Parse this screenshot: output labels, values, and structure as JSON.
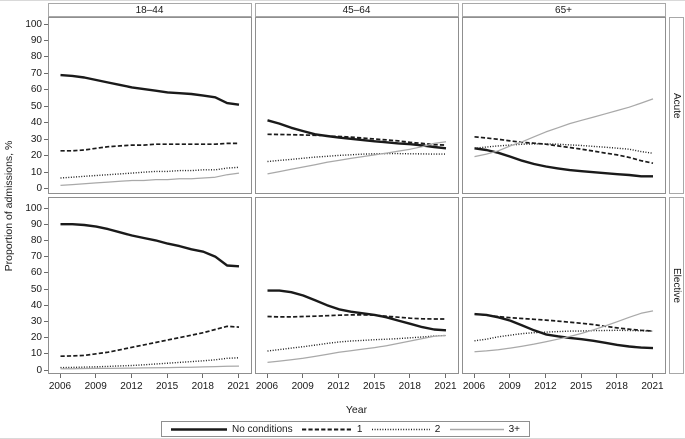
{
  "figure": {
    "ylabel": "Proportion of admissions, %",
    "xlabel": "Year",
    "col_headers": [
      "18–44",
      "45–64",
      "65+"
    ],
    "row_headers": [
      "Acute",
      "Elective"
    ],
    "y_ticks": [
      100,
      90,
      80,
      70,
      60,
      50,
      40,
      30,
      20,
      10,
      0
    ],
    "x_tick_years": [
      2006,
      2009,
      2012,
      2015,
      2018,
      2021
    ],
    "colors": {
      "black": "#1a1a1a",
      "gray": "#a9a9a9"
    }
  },
  "legend": {
    "items": [
      {
        "label": "No conditions",
        "style": "solid-thick-black"
      },
      {
        "label": "1",
        "style": "dashed-black"
      },
      {
        "label": "2",
        "style": "dotted-black"
      },
      {
        "label": "3+",
        "style": "solid-gray"
      }
    ]
  },
  "chart_data": {
    "type": "line",
    "title": "",
    "xlabel": "Year",
    "ylabel": "Proportion of admissions, %",
    "ylim": [
      0,
      100
    ],
    "grid": false,
    "legend_position": "bottom",
    "facet_rows": [
      "Acute",
      "Elective"
    ],
    "facet_cols": [
      "18–44",
      "45–64",
      "65+"
    ],
    "x": [
      2006,
      2007,
      2008,
      2009,
      2010,
      2011,
      2012,
      2013,
      2014,
      2015,
      2016,
      2017,
      2018,
      2019,
      2020,
      2021
    ],
    "series_styles": {
      "No conditions": "solid-thick-black",
      "1": "dashed-black",
      "2": "dotted-black",
      "3+": "solid-gray"
    },
    "panels": [
      {
        "row": "Acute",
        "col": "18–44",
        "series": [
          {
            "name": "No conditions",
            "values": [
              69,
              68.5,
              67.5,
              66,
              64.5,
              63,
              61.5,
              60.5,
              59.5,
              58.5,
              58,
              57.5,
              56.5,
              55.5,
              52,
              51
            ]
          },
          {
            "name": "1",
            "values": [
              23,
              23,
              23.5,
              24.5,
              25.5,
              26,
              26.5,
              26.5,
              27,
              27,
              27,
              27,
              27,
              27,
              27.5,
              27.5
            ]
          },
          {
            "name": "2",
            "values": [
              6.5,
              7,
              7.5,
              8,
              8.5,
              9,
              9.5,
              10,
              10.5,
              10.5,
              11,
              11,
              11.5,
              11.5,
              12.5,
              13
            ]
          },
          {
            "name": "3+",
            "values": [
              2,
              2.5,
              3,
              3.5,
              4,
              4.5,
              5,
              5,
              5.5,
              5.5,
              6,
              6,
              6.5,
              7,
              8.5,
              9.5
            ]
          }
        ]
      },
      {
        "row": "Acute",
        "col": "45–64",
        "series": [
          {
            "name": "No conditions",
            "values": [
              41.5,
              39.5,
              37,
              35,
              33,
              32,
              31,
              30.3,
              29.5,
              28.8,
              28.2,
              27.5,
              27,
              26.3,
              25.3,
              24.5
            ]
          },
          {
            "name": "1",
            "values": [
              33,
              32.9,
              32.8,
              32.6,
              32.4,
              32.1,
              31.7,
              31.3,
              30.8,
              30.2,
              29.6,
              29,
              28.2,
              27.5,
              26.8,
              26.5
            ]
          },
          {
            "name": "2",
            "values": [
              16.5,
              17.2,
              17.8,
              18.5,
              19.2,
              19.7,
              20.2,
              20.6,
              21,
              21.2,
              21.3,
              21.3,
              21.2,
              21.1,
              21,
              21
            ]
          },
          {
            "name": "3+",
            "values": [
              9,
              10.4,
              11.8,
              13.2,
              14.6,
              16,
              17.2,
              18.4,
              19.5,
              20.5,
              21.6,
              22.8,
              24,
              25.5,
              27.5,
              28.5
            ]
          }
        ]
      },
      {
        "row": "Acute",
        "col": "65+",
        "series": [
          {
            "name": "No conditions",
            "values": [
              24.5,
              23.5,
              21.8,
              19.5,
              17,
              15,
              13.5,
              12.3,
              11.3,
              10.6,
              10,
              9.4,
              8.8,
              8.3,
              7.5,
              7.5
            ]
          },
          {
            "name": "1",
            "values": [
              31.5,
              30.8,
              30,
              29,
              28.2,
              27.6,
              27,
              26,
              25,
              24,
              22.8,
              21.6,
              20.5,
              19,
              17,
              15.5
            ]
          },
          {
            "name": "2",
            "values": [
              24.5,
              25.3,
              26,
              26.5,
              27,
              27.2,
              27.2,
              27,
              26.6,
              26.2,
              25.7,
              25.2,
              24.6,
              24,
              22.5,
              21.5
            ]
          },
          {
            "name": "3+",
            "values": [
              19.5,
              21,
              23,
              26,
              28.5,
              31.5,
              34.5,
              37,
              39.5,
              41.5,
              43.5,
              45.5,
              47.5,
              49.5,
              52,
              54.5
            ]
          }
        ]
      },
      {
        "row": "Elective",
        "col": "18–44",
        "series": [
          {
            "name": "No conditions",
            "values": [
              90,
              90,
              89.5,
              88.5,
              87,
              85,
              83,
              81.5,
              80,
              78,
              76.5,
              74.5,
              73,
              70,
              64.5,
              64
            ]
          },
          {
            "name": "1",
            "values": [
              8.5,
              8.7,
              9,
              10,
              11,
              12.5,
              14,
              15.5,
              17,
              18.5,
              20,
              21.5,
              23,
              25,
              27,
              26.5
            ]
          },
          {
            "name": "2",
            "values": [
              1.5,
              1.6,
              1.8,
              2,
              2.2,
              2.5,
              2.8,
              3.2,
              3.7,
              4.2,
              4.7,
              5.2,
              5.7,
              6.3,
              7.2,
              7.5
            ]
          },
          {
            "name": "3+",
            "values": [
              0.8,
              0.8,
              0.9,
              1,
              1,
              1.1,
              1.2,
              1.3,
              1.4,
              1.5,
              1.6,
              1.7,
              1.9,
              2.1,
              2.3,
              2.4
            ]
          }
        ]
      },
      {
        "row": "Elective",
        "col": "45–64",
        "series": [
          {
            "name": "No conditions",
            "values": [
              49,
              49,
              48,
              46,
              43,
              40,
              37.5,
              36,
              35,
              34,
              32.5,
              30.5,
              28.5,
              26.5,
              25,
              24.5
            ]
          },
          {
            "name": "1",
            "values": [
              33,
              32.8,
              32.8,
              33,
              33.2,
              33.5,
              33.8,
              34,
              34,
              33.8,
              33.2,
              32.6,
              32,
              31.6,
              31.5,
              31.5
            ]
          },
          {
            "name": "2",
            "values": [
              11.7,
              12.6,
              13.5,
              14.4,
              15.4,
              16.4,
              17.3,
              17.9,
              18.3,
              18.7,
              19,
              19.4,
              19.9,
              20.4,
              21,
              21.3
            ]
          },
          {
            "name": "3+",
            "values": [
              4.7,
              5.5,
              6.3,
              7.2,
              8.4,
              9.6,
              10.9,
              11.9,
              12.9,
              13.8,
              15,
              16.4,
              17.9,
              19.4,
              20.8,
              21.3
            ]
          }
        ]
      },
      {
        "row": "Elective",
        "col": "65+",
        "series": [
          {
            "name": "No conditions",
            "values": [
              34.5,
              34,
              32.5,
              30.5,
              27.5,
              24.5,
              22,
              20.8,
              19.8,
              19,
              18,
              16.8,
              15.5,
              14.5,
              13.8,
              13.5
            ]
          },
          {
            "name": "1",
            "values": [
              34.5,
              33.8,
              33,
              32.3,
              31.8,
              31.3,
              30.8,
              30.2,
              29.5,
              28.8,
              28,
              27,
              26,
              25.2,
              24.5,
              24
            ]
          },
          {
            "name": "2",
            "values": [
              18,
              19,
              20.5,
              21.5,
              22.5,
              23,
              23.4,
              23.7,
              24,
              24.1,
              24.3,
              24.4,
              24.5,
              24.4,
              24.2,
              24
            ]
          },
          {
            "name": "3+",
            "values": [
              11.3,
              11.8,
              12.5,
              13.5,
              14.7,
              16,
              17.5,
              19,
              20.7,
              22.6,
              24.8,
              27.2,
              29.8,
              32.5,
              35,
              36.5
            ]
          }
        ]
      }
    ]
  }
}
